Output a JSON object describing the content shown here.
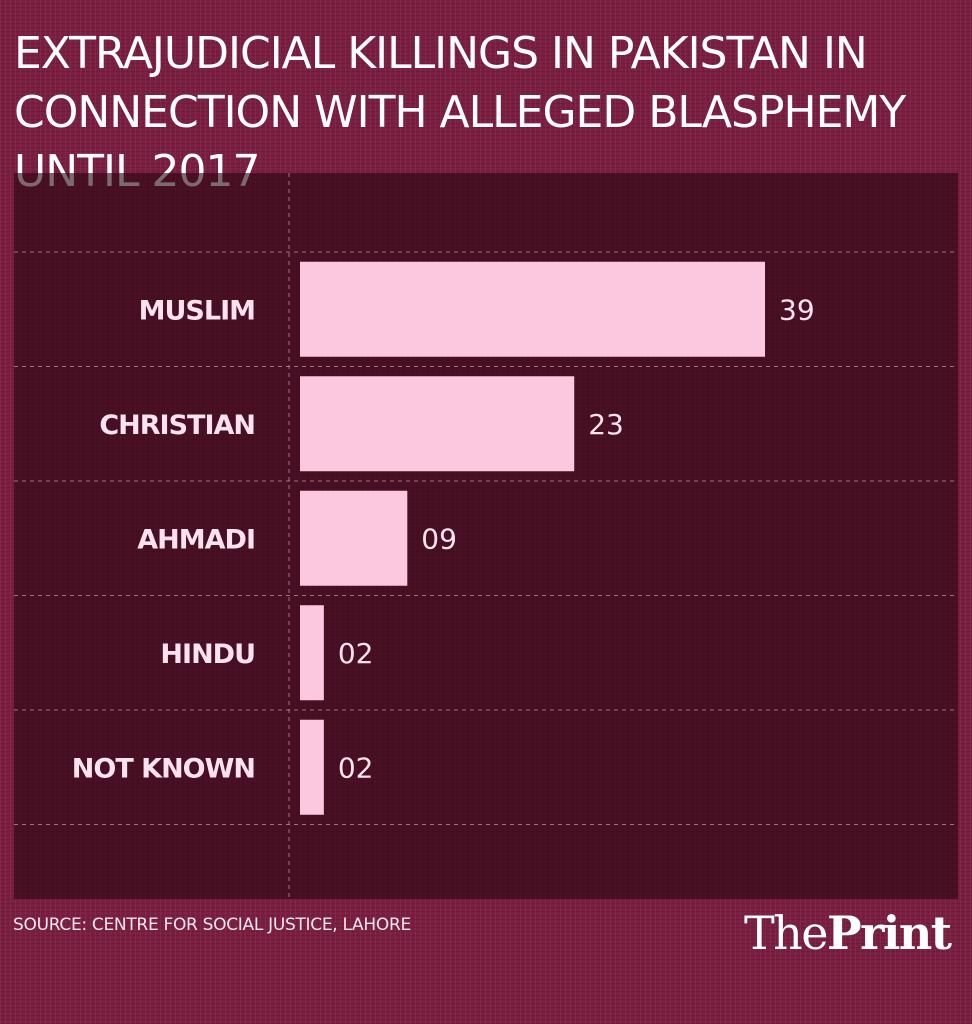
{
  "header": {
    "title": "EXTRAJUDICIAL KILLINGS IN PAKISTAN IN CONNECTION WITH ALLEGED BLASPHEMY UNTIL 2017"
  },
  "chart_data": {
    "type": "bar",
    "orientation": "horizontal",
    "categories": [
      "MUSLIM",
      "CHRISTIAN",
      "AHMADI",
      "HINDU",
      "NOT KNOWN"
    ],
    "values": [
      39,
      23,
      9,
      2,
      2
    ],
    "value_labels": [
      "39",
      "23",
      "09",
      "02",
      "02"
    ],
    "xlim": [
      0,
      52
    ],
    "grid": true,
    "colors": {
      "bar": "#fcc8e0",
      "panel": "#3a0d1f",
      "grid": "#b98a9c"
    }
  },
  "footer": {
    "source": "SOURCE: CENTRE FOR SOCIAL JUSTICE, LAHORE",
    "logo_the": "The",
    "logo_print": "Print"
  }
}
